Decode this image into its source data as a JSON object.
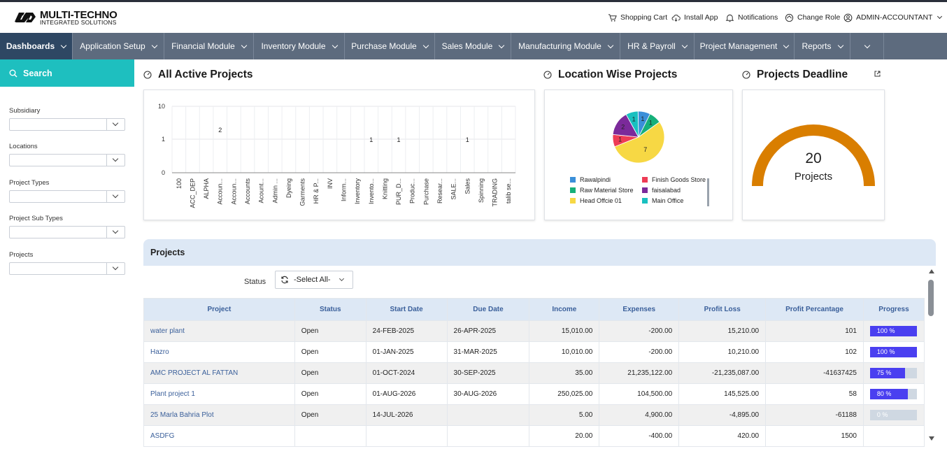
{
  "brand": {
    "name": "MULTI-TECHNO",
    "tagline": "INTEGRATED SOLUTIONS"
  },
  "topbar": {
    "links": [
      {
        "label": "Shopping Cart",
        "icon": "cart-icon"
      },
      {
        "label": "Install App",
        "icon": "cloud-download-icon"
      },
      {
        "label": "Notifications",
        "icon": "bell-icon"
      },
      {
        "label": "Change Role",
        "icon": "switch-role-icon"
      },
      {
        "label": "ADMIN-ACCOUNTANT",
        "icon": "user-circle-icon"
      }
    ]
  },
  "nav": {
    "items": [
      {
        "label": "Dashboards",
        "active": true
      },
      {
        "label": "Application Setup"
      },
      {
        "label": "Financial Module"
      },
      {
        "label": "Inventory Module"
      },
      {
        "label": "Purchase Module"
      },
      {
        "label": "Sales Module"
      },
      {
        "label": "Manufacturing Module"
      },
      {
        "label": "HR & Payroll"
      },
      {
        "label": "Project Management"
      },
      {
        "label": "Reports"
      },
      {
        "label": ""
      }
    ]
  },
  "sidebar": {
    "search_label": "Search",
    "filters": [
      {
        "label": "Subsidiary",
        "value": ""
      },
      {
        "label": "Locations",
        "value": ""
      },
      {
        "label": "Project Types",
        "value": ""
      },
      {
        "label": "Project Sub Types",
        "value": ""
      },
      {
        "label": "Projects",
        "value": ""
      }
    ]
  },
  "panels": {
    "active_projects_title": "All Active Projects",
    "location_title": "Location Wise Projects",
    "deadline_title": "Projects Deadline"
  },
  "chart_data": [
    {
      "type": "bar",
      "title": "All Active Projects",
      "y_scale": "log",
      "y_ticks": [
        "10",
        "1",
        "0"
      ],
      "categories": [
        "100",
        "ACC_DEP",
        "ALPHA",
        "Accoun...",
        "Accoun...",
        "Accounts",
        "Acount...",
        "Admin ...",
        "Dyeing",
        "Garments",
        "HR & P...",
        "INV",
        "Inform...",
        "Inventory",
        "Invento...",
        "Knitting",
        "PUR_D...",
        "Produc...",
        "Purchase",
        "Resear...",
        "SALE...",
        "Sales",
        "Spinning",
        "TRADING",
        "talib se..."
      ],
      "values": [
        0,
        0,
        0,
        2,
        0,
        0,
        0,
        0,
        0,
        0,
        0,
        0,
        0,
        0,
        1,
        0,
        1,
        0,
        0,
        0,
        0,
        1,
        0,
        0,
        0
      ],
      "data_labels": {
        "3": "2",
        "14": "1",
        "16": "1",
        "21": "1"
      },
      "grid": true
    },
    {
      "type": "pie",
      "title": "Location Wise Projects",
      "slices": [
        {
          "label": "Rawalpindi",
          "value": 1,
          "color": "#3b8fd9"
        },
        {
          "label": "Raw Material Store",
          "value": 1,
          "color": "#16b07a"
        },
        {
          "label": "Head Offcie 01",
          "value": 7,
          "color": "#f7d844"
        },
        {
          "label": "Finish Goods Store",
          "value": 1,
          "color": "#ee3c55"
        },
        {
          "label": "faisalabad",
          "value": 2,
          "color": "#7b2a9a"
        },
        {
          "label": "Main Office",
          "value": 1,
          "color": "#19c0c0"
        }
      ],
      "legend": "bottom"
    },
    {
      "type": "gauge",
      "title": "Projects Deadline",
      "value": 20,
      "value_label": "20",
      "unit_label": "Projects",
      "color": "#d97e00"
    }
  ],
  "projects": {
    "title": "Projects",
    "status_label": "Status",
    "status_value": "-Select All-",
    "columns": [
      "Project",
      "Status",
      "Start Date",
      "Due Date",
      "Income",
      "Expenses",
      "Profit Loss",
      "Profit Percantage",
      "Progress"
    ],
    "rows": [
      {
        "project": "water plant",
        "status": "Open",
        "start": "24-FEB-2025",
        "due": "26-APR-2025",
        "income": "15,010.00",
        "expenses": "-200.00",
        "profit": "15,210.00",
        "pct": "101",
        "progress": 100,
        "progress_label": "100 %"
      },
      {
        "project": "Hazro",
        "status": "Open",
        "start": "01-JAN-2025",
        "due": "31-MAR-2025",
        "income": "10,010.00",
        "expenses": "-200.00",
        "profit": "10,210.00",
        "pct": "102",
        "progress": 100,
        "progress_label": "100 %"
      },
      {
        "project": "AMC PROJECT AL FATTAN",
        "status": "Open",
        "start": "01-OCT-2024",
        "due": "30-SEP-2025",
        "income": "35.00",
        "expenses": "21,235,122.00",
        "profit": "-21,235,087.00",
        "pct": "-41637425",
        "progress": 75,
        "progress_label": "75 %"
      },
      {
        "project": "Plant project 1",
        "status": "Open",
        "start": "01-AUG-2026",
        "due": "30-AUG-2026",
        "income": "250,025.00",
        "expenses": "104,500.00",
        "profit": "145,525.00",
        "pct": "58",
        "progress": 80,
        "progress_label": "80 %"
      },
      {
        "project": "25 Marla Bahria Plot",
        "status": "Open",
        "start": "14-JUL-2026",
        "due": "",
        "income": "5.00",
        "expenses": "4,900.00",
        "profit": "-4,895.00",
        "pct": "-61188",
        "progress": 0,
        "progress_label": "0 %"
      },
      {
        "project": "ASDFG",
        "status": "",
        "start": "",
        "due": "",
        "income": "20.00",
        "expenses": "-400.00",
        "profit": "420.00",
        "pct": "1500",
        "progress": null,
        "progress_label": ""
      }
    ]
  }
}
